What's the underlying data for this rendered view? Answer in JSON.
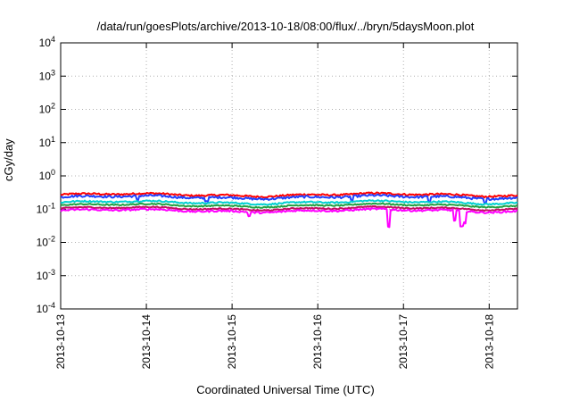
{
  "chart_data": {
    "type": "line",
    "title": "/data/run/goesPlots/archive/2013-10-18/08:00/flux/../bryn/5daysMoon.plot",
    "xlabel": "Coordinated Universal Time (UTC)",
    "ylabel": "cGy/day",
    "yscale": "log",
    "ylim": [
      0.0001,
      10000
    ],
    "yticks": [
      {
        "base": "10",
        "exp": "-4"
      },
      {
        "base": "10",
        "exp": "-3"
      },
      {
        "base": "10",
        "exp": "-2"
      },
      {
        "base": "10",
        "exp": "-1"
      },
      {
        "base": "10",
        "exp": "0"
      },
      {
        "base": "10",
        "exp": "1"
      },
      {
        "base": "10",
        "exp": "2"
      },
      {
        "base": "10",
        "exp": "3"
      },
      {
        "base": "10",
        "exp": "4"
      }
    ],
    "xlim_days": [
      0,
      5.33
    ],
    "xticks": [
      "2013-10-13",
      "2013-10-14",
      "2013-10-15",
      "2013-10-16",
      "2013-10-17",
      "2013-10-18"
    ],
    "grid": true,
    "series": [
      {
        "name": "series-red",
        "color": "#ff0000",
        "base": 0.27,
        "amp": 0.12,
        "dips": []
      },
      {
        "name": "series-blue",
        "color": "#2040ff",
        "base": 0.23,
        "amp": 0.15,
        "dips": [
          [
            0.9,
            0.75
          ],
          [
            1.7,
            0.8
          ],
          [
            3.4,
            0.75
          ],
          [
            4.3,
            0.7
          ],
          [
            4.95,
            0.7
          ]
        ]
      },
      {
        "name": "series-cyan",
        "color": "#00d0d0",
        "base": 0.16,
        "amp": 0.1,
        "dips": []
      },
      {
        "name": "series-green",
        "color": "#20a040",
        "base": 0.13,
        "amp": 0.08,
        "dips": []
      },
      {
        "name": "series-magenta-dark",
        "color": "#c01060",
        "base": 0.105,
        "amp": 0.08,
        "dips": []
      },
      {
        "name": "series-magenta",
        "color": "#ff00ff",
        "base": 0.09,
        "amp": 0.12,
        "dips": [
          [
            3.83,
            0.3
          ],
          [
            4.6,
            0.5
          ],
          [
            4.68,
            0.33
          ],
          [
            4.72,
            0.45
          ],
          [
            2.2,
            0.75
          ]
        ]
      }
    ]
  }
}
